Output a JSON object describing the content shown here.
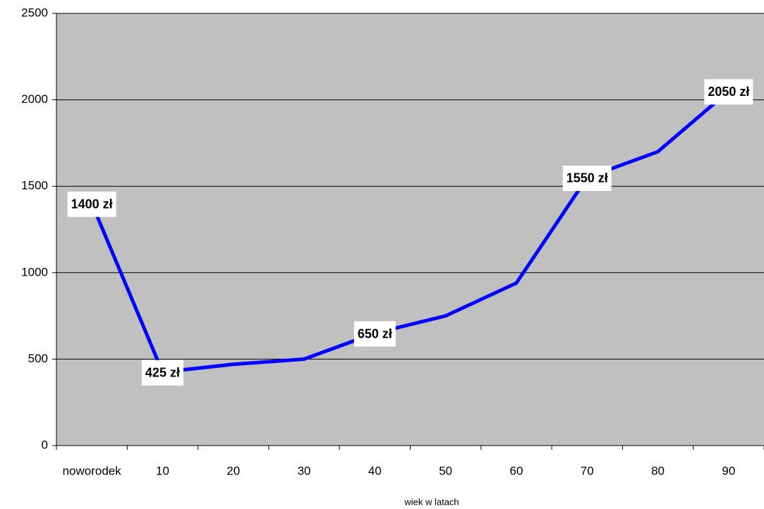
{
  "chart_data": {
    "type": "line",
    "x_label": "wiek w latach",
    "categories": [
      "noworodek",
      "10",
      "20",
      "30",
      "40",
      "50",
      "60",
      "70",
      "80",
      "90"
    ],
    "series": [
      {
        "name": null,
        "color": "#0000ff",
        "values": [
          1400,
          425,
          470,
          500,
          650,
          750,
          940,
          1550,
          1700,
          2050
        ],
        "value_labels": [
          "1400 zł",
          "425 zł",
          null,
          null,
          "650 zł",
          null,
          null,
          "1550 zł",
          null,
          "2050 zł"
        ]
      }
    ],
    "ylim": [
      0,
      2500
    ],
    "yticks": [
      0,
      500,
      1000,
      1500,
      2000,
      2500
    ],
    "grid": true,
    "background": "#c0c0c0"
  }
}
